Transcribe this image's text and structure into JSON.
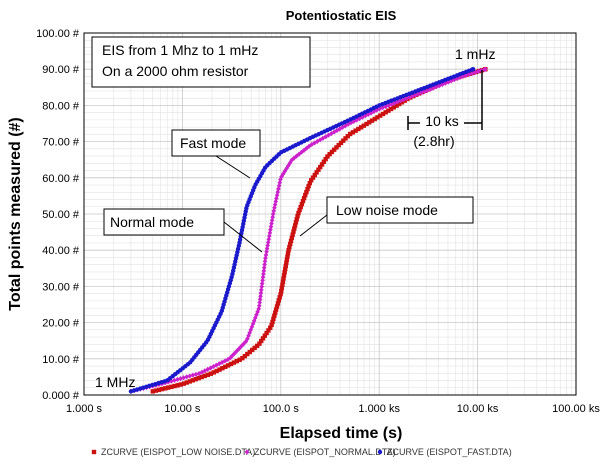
{
  "chart_data": {
    "type": "scatter",
    "title": "Potentiostatic EIS",
    "xlabel": "Elapsed time (s)",
    "ylabel": "Total points measured (#)",
    "x_scale": "log",
    "xlim": [
      1,
      100000
    ],
    "ylim": [
      0,
      100
    ],
    "grid": true,
    "legend_position": "bottom",
    "x_ticks": [
      {
        "value": 1,
        "label": "1.000 s"
      },
      {
        "value": 10,
        "label": "10.00 s"
      },
      {
        "value": 100,
        "label": "100.0 s"
      },
      {
        "value": 1000,
        "label": "1.000 ks"
      },
      {
        "value": 10000,
        "label": "10.00 ks"
      },
      {
        "value": 100000,
        "label": "100.00 ks"
      }
    ],
    "y_ticks": [
      {
        "value": 0,
        "label": "0.000 #"
      },
      {
        "value": 10,
        "label": "10.00 #"
      },
      {
        "value": 20,
        "label": "20.00 #"
      },
      {
        "value": 30,
        "label": "30.00 #"
      },
      {
        "value": 40,
        "label": "40.00 #"
      },
      {
        "value": 50,
        "label": "50.00 #"
      },
      {
        "value": 60,
        "label": "60.00 #"
      },
      {
        "value": 70,
        "label": "70.00 #"
      },
      {
        "value": 80,
        "label": "80.00 #"
      },
      {
        "value": 90,
        "label": "90.00 #"
      },
      {
        "value": 100,
        "label": "100.00 #"
      }
    ],
    "series": [
      {
        "name": "ZCURVE (EISPOT_LOW NOISE.DTA)",
        "color": "#cc1111",
        "marker": "square",
        "points": [
          [
            5,
            1
          ],
          [
            10,
            3
          ],
          [
            20,
            6
          ],
          [
            40,
            10
          ],
          [
            60,
            14
          ],
          [
            80,
            19
          ],
          [
            100,
            28
          ],
          [
            120,
            40
          ],
          [
            150,
            50
          ],
          [
            200,
            59
          ],
          [
            300,
            66
          ],
          [
            500,
            72
          ],
          [
            1000,
            77
          ],
          [
            2000,
            82
          ],
          [
            5000,
            87
          ],
          [
            12000,
            90
          ]
        ]
      },
      {
        "name": "ZCURVE (EISPOT_NORMAL.DTA)",
        "color": "#cc22cc",
        "marker": "diamond",
        "points": [
          [
            3,
            1
          ],
          [
            6,
            3
          ],
          [
            15,
            6
          ],
          [
            30,
            10
          ],
          [
            45,
            15
          ],
          [
            60,
            24
          ],
          [
            70,
            38
          ],
          [
            85,
            51
          ],
          [
            100,
            60
          ],
          [
            130,
            65
          ],
          [
            200,
            69
          ],
          [
            500,
            75
          ],
          [
            1000,
            79
          ],
          [
            3000,
            84
          ],
          [
            7000,
            88
          ],
          [
            12000,
            90
          ]
        ]
      },
      {
        "name": "ZCURVE (EISPOT_FAST.DTA)",
        "color": "#1a1acc",
        "marker": "circle",
        "points": [
          [
            3,
            1
          ],
          [
            7,
            4
          ],
          [
            12,
            9
          ],
          [
            18,
            15
          ],
          [
            25,
            23
          ],
          [
            32,
            33
          ],
          [
            38,
            42
          ],
          [
            45,
            52
          ],
          [
            55,
            58
          ],
          [
            70,
            63
          ],
          [
            100,
            67
          ],
          [
            200,
            71
          ],
          [
            500,
            76
          ],
          [
            1000,
            80
          ],
          [
            3000,
            85
          ],
          [
            9000,
            90
          ]
        ]
      }
    ],
    "annotations": {
      "box_line1": "EIS from 1 Mhz to 1 mHz",
      "box_line2": "On a 2000 ohm resistor",
      "fast_mode": "Fast mode",
      "normal_mode": "Normal mode",
      "low_noise_mode": "Low noise mode",
      "start_label": "1 MHz",
      "end_label": "1 mHz",
      "span_label": "10 ks",
      "span_sub": "(2.8hr)"
    }
  }
}
